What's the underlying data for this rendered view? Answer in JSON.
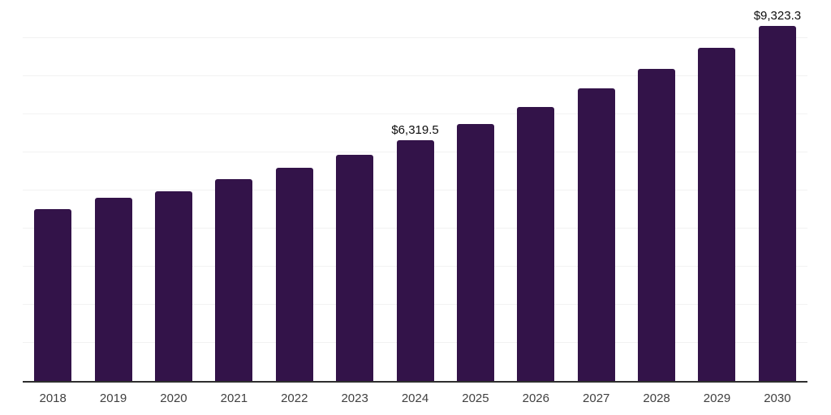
{
  "chart_data": {
    "type": "bar",
    "title": "",
    "xlabel": "",
    "ylabel": "",
    "categories": [
      "2018",
      "2019",
      "2020",
      "2021",
      "2022",
      "2023",
      "2024",
      "2025",
      "2026",
      "2027",
      "2028",
      "2029",
      "2030"
    ],
    "values": [
      4510,
      4800,
      4980,
      5290,
      5590,
      5930,
      6319.5,
      6740,
      7200,
      7690,
      8200,
      8740,
      9323.3
    ],
    "data_labels": [
      "",
      "",
      "",
      "",
      "",
      "",
      "$6,319.5",
      "",
      "",
      "",
      "",
      "",
      "$9,323.3"
    ],
    "ylim": [
      0,
      10000
    ],
    "gridline_interval": 1000,
    "grid_on": true,
    "legend": "none",
    "colors": {
      "bar": "#331349",
      "gridline": "#f2f2f2",
      "axis_line": "#2e2e2e",
      "tick_label": "#404040",
      "data_label": "#0d0d0d",
      "background": "#ffffff"
    }
  }
}
